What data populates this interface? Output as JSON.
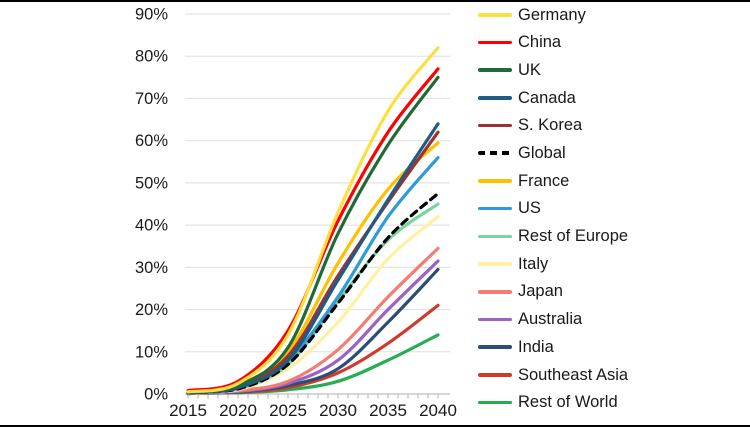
{
  "figure": {
    "background": "#FFFFFF",
    "frame_color": "#000000",
    "gridline_color": "#E4E4E4",
    "axis_color": "#BFBFBF",
    "tick_label_color": "#1A1A1A"
  },
  "chart_data": {
    "type": "line",
    "title": "",
    "xlabel": "",
    "ylabel": "",
    "x": [
      2015,
      2020,
      2025,
      2030,
      2035,
      2040
    ],
    "x_tick_labels": [
      "2015",
      "2020",
      "2025",
      "2030",
      "2035",
      "2040"
    ],
    "minor_x_ticks_every_year": true,
    "y_tick_labels": [
      "0%",
      "10%",
      "20%",
      "30%",
      "40%",
      "50%",
      "60%",
      "70%",
      "80%",
      "90%"
    ],
    "ylim": [
      0,
      90
    ],
    "xlim": [
      2015,
      2040
    ],
    "grid": "horizontal",
    "legend_position": "right",
    "series": [
      {
        "name": "Germany",
        "color": "#FFDF3F",
        "dash": false,
        "values": [
          0.5,
          2.5,
          14.0,
          43.0,
          67.0,
          82.0
        ]
      },
      {
        "name": "China",
        "color": "#FF0000",
        "dash": false,
        "values": [
          0.8,
          3.0,
          15.0,
          41.0,
          62.0,
          77.0
        ]
      },
      {
        "name": "UK",
        "color": "#1F6B35",
        "dash": false,
        "values": [
          0.4,
          2.0,
          11.0,
          38.0,
          59.0,
          75.0
        ]
      },
      {
        "name": "Canada",
        "color": "#1E5C85",
        "dash": false,
        "values": [
          0.3,
          1.5,
          8.0,
          27.0,
          46.0,
          64.0
        ]
      },
      {
        "name": "S. Korea",
        "color": "#9E3132",
        "dash": false,
        "values": [
          0.3,
          1.5,
          9.0,
          28.0,
          45.5,
          62.0
        ]
      },
      {
        "name": "Global",
        "color": "#000000",
        "dash": true,
        "values": [
          0.3,
          1.2,
          7.0,
          21.5,
          37.0,
          47.5
        ]
      },
      {
        "name": "France",
        "color": "#FFC000",
        "dash": false,
        "values": [
          0.5,
          2.2,
          10.0,
          31.0,
          48.5,
          59.5
        ]
      },
      {
        "name": "US",
        "color": "#2F9BD9",
        "dash": false,
        "values": [
          0.3,
          1.3,
          8.0,
          23.0,
          42.0,
          56.0
        ]
      },
      {
        "name": "Rest of Europe",
        "color": "#76D69E",
        "dash": false,
        "values": [
          0.3,
          1.2,
          7.0,
          22.0,
          36.5,
          45.0
        ]
      },
      {
        "name": "Italy",
        "color": "#FFF0A3",
        "dash": false,
        "values": [
          0.2,
          1.0,
          6.0,
          17.0,
          32.0,
          42.0
        ]
      },
      {
        "name": "Japan",
        "color": "#F47C72",
        "dash": false,
        "values": [
          0.2,
          0.8,
          3.0,
          10.5,
          23.0,
          34.5
        ]
      },
      {
        "name": "Australia",
        "color": "#9A63C4",
        "dash": false,
        "values": [
          0.2,
          0.6,
          2.5,
          8.0,
          20.0,
          31.5
        ]
      },
      {
        "name": "India",
        "color": "#2C4D76",
        "dash": false,
        "values": [
          0.1,
          0.5,
          2.0,
          6.0,
          17.0,
          29.5
        ]
      },
      {
        "name": "Southeast Asia",
        "color": "#D13A2B",
        "dash": false,
        "values": [
          0.1,
          0.4,
          1.5,
          5.0,
          12.0,
          21.0
        ]
      },
      {
        "name": "Rest of World",
        "color": "#24AE4F",
        "dash": false,
        "values": [
          0.1,
          0.3,
          1.0,
          3.0,
          8.0,
          14.0
        ]
      }
    ]
  }
}
